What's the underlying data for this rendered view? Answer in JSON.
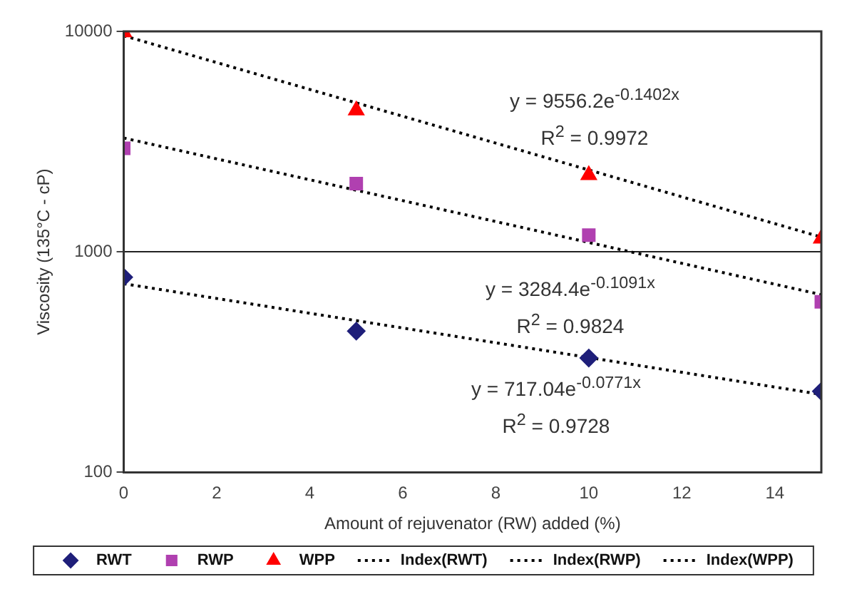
{
  "chart_data": {
    "type": "scatter",
    "xlabel": "Amount of rejuvenator (RW) added (%)",
    "ylabel": "Viscosity (135°C - cP)",
    "log": "y",
    "xlim": [
      0,
      15
    ],
    "xticks": [
      0,
      2,
      4,
      6,
      8,
      10,
      12,
      14
    ],
    "ylim": [
      100,
      10000
    ],
    "yticks": [
      100,
      1000,
      10000
    ],
    "grid": "y",
    "legend": "bottom",
    "series": [
      {
        "name": "RWT",
        "type": "scatter",
        "marker": "diamond",
        "color": "#1f1f7a",
        "x": [
          0,
          5,
          10,
          15
        ],
        "values": [
          767,
          437,
          330,
          233
        ]
      },
      {
        "name": "RWP",
        "type": "scatter",
        "marker": "square",
        "color": "#b040b0",
        "x": [
          0,
          5,
          10,
          15
        ],
        "values": [
          2950,
          2040,
          1190,
          594
        ]
      },
      {
        "name": "WPP",
        "type": "scatter",
        "marker": "triangle",
        "color": "#ff0000",
        "x": [
          0,
          5,
          10,
          15
        ],
        "values": [
          9900,
          4380,
          2230,
          1150
        ]
      },
      {
        "name": "Index(RWT)",
        "type": "line",
        "marker": "none",
        "line_style": "dotted",
        "color": "#000000",
        "x": [
          0,
          15
        ],
        "values": [
          717.04,
          225.6
        ]
      },
      {
        "name": "Index(RWP)",
        "type": "line",
        "marker": "none",
        "line_style": "dotted",
        "color": "#000000",
        "x": [
          0,
          15
        ],
        "values": [
          3284.4,
          639.5
        ]
      },
      {
        "name": "Index(WPP)",
        "type": "line",
        "marker": "none",
        "line_style": "dotted",
        "color": "#000000",
        "x": [
          0,
          15
        ],
        "values": [
          9556.2,
          1166.8
        ]
      }
    ],
    "annotations": [
      "y = 9556.2e$^{-0.1402x}$",
      "R$^{2}$ = 0.9972",
      "y = 3284.4e$^{-0.1091x}$",
      "R$^{2}$ = 0.9824",
      "y = 717.04e$^{-0.0771x}$",
      "R$^{2}$ = 0.9728"
    ]
  }
}
